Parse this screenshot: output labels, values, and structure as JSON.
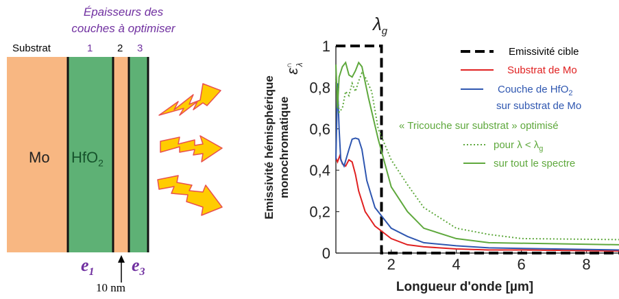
{
  "diagram": {
    "heading_line1": "Épaisseurs des",
    "heading_line2": "couches à optimiser",
    "substrate_label": "Substrat",
    "layer_numbers": [
      "1",
      "2",
      "3"
    ],
    "mo_label": "Mo",
    "hfo2_base": "HfO",
    "hfo2_sub": "2",
    "e1_letter": "e",
    "e1_sub": "1",
    "e3_letter": "e",
    "e3_sub": "3",
    "arrow_label": "10 nm",
    "colors": {
      "mo": "#f8b782",
      "hfo2": "#5eb175",
      "arrow_fill": "#ffcc00",
      "arrow_stroke": "#e85050",
      "purple_text": "#7030a0"
    }
  },
  "chart_data": {
    "type": "line",
    "ylabel_line1": "Emissivité hémisphérique",
    "ylabel_line2": "monochromatique",
    "ysymbol": "ε",
    "ysymbol_sup": "∩",
    "ysymbol_sub": "λ",
    "xlabel": "Longueur d'onde [µm]",
    "lambda_g_label": "λ",
    "lambda_g_sub": "g",
    "lambda_g": 1.7,
    "xlim": [
      0.3,
      9
    ],
    "ylim": [
      0,
      1
    ],
    "xticks": [
      "2",
      "4",
      "6",
      "8"
    ],
    "yticks": [
      "0",
      "0,2",
      "0,4",
      "0,6",
      "0,8",
      "1"
    ],
    "legend": [
      {
        "text": "Emissivité cible",
        "color": "#000000",
        "style": "dashed"
      },
      {
        "text": "Substrat de Mo",
        "color": "#e02020",
        "style": "solid"
      },
      {
        "text": "Couche de HfO",
        "sub": "2",
        "color": "#2e56b0",
        "style": "solid"
      },
      {
        "text": "sur substrat de Mo",
        "color": "#2e56b0",
        "style": "none"
      },
      {
        "text": "« Tricouche sur substrat » optimisé",
        "color": "#5ea83c",
        "style": "none"
      },
      {
        "text": "pour λ < λ",
        "sub": "g",
        "color": "#5ea83c",
        "style": "dotted"
      },
      {
        "text": "sur tout le spectre",
        "color": "#5ea83c",
        "style": "solid"
      }
    ],
    "series": [
      {
        "name": "Emissivité cible",
        "color": "#000000",
        "style": "dashed",
        "x": [
          0.3,
          1.7,
          1.7,
          9
        ],
        "y": [
          1,
          1,
          0,
          0
        ]
      },
      {
        "name": "Substrat de Mo",
        "color": "#e02020",
        "style": "solid",
        "x": [
          0.3,
          0.35,
          0.42,
          0.5,
          0.6,
          0.7,
          0.8,
          0.9,
          1.0,
          1.2,
          1.5,
          2.0,
          2.5,
          3.0,
          4.0,
          5.0,
          6.0,
          9.0
        ],
        "y": [
          0.46,
          0.44,
          0.47,
          0.43,
          0.42,
          0.45,
          0.44,
          0.38,
          0.3,
          0.2,
          0.13,
          0.07,
          0.04,
          0.03,
          0.02,
          0.015,
          0.015,
          0.01
        ]
      },
      {
        "name": "Couche de HfO2 sur substrat de Mo",
        "color": "#2e56b0",
        "style": "solid",
        "x": [
          0.3,
          0.35,
          0.4,
          0.45,
          0.55,
          0.7,
          0.8,
          0.9,
          1.0,
          1.1,
          1.25,
          1.5,
          2.0,
          2.5,
          3.0,
          4.0,
          5.0,
          9.0
        ],
        "y": [
          0.45,
          0.82,
          0.6,
          0.45,
          0.42,
          0.5,
          0.55,
          0.555,
          0.55,
          0.5,
          0.35,
          0.22,
          0.12,
          0.08,
          0.05,
          0.035,
          0.025,
          0.015
        ]
      },
      {
        "name": "pour λ < λg",
        "color": "#5ea83c",
        "style": "dotted",
        "x": [
          0.3,
          0.4,
          0.5,
          0.6,
          0.7,
          0.8,
          0.9,
          1.0,
          1.1,
          1.2,
          1.4,
          1.6,
          2.0,
          2.5,
          3.0,
          4.0,
          5.0,
          6.0,
          9.0
        ],
        "y": [
          0.85,
          0.68,
          0.7,
          0.78,
          0.76,
          0.82,
          0.78,
          0.83,
          0.87,
          0.85,
          0.78,
          0.6,
          0.45,
          0.33,
          0.22,
          0.12,
          0.09,
          0.07,
          0.065
        ]
      },
      {
        "name": "sur tout le spectre",
        "color": "#5ea83c",
        "style": "solid",
        "x": [
          0.3,
          0.35,
          0.4,
          0.5,
          0.6,
          0.7,
          0.8,
          0.9,
          1.0,
          1.1,
          1.3,
          1.6,
          2.0,
          2.5,
          3.0,
          4.0,
          5.0,
          9.0
        ],
        "y": [
          0.91,
          0.7,
          0.85,
          0.9,
          0.92,
          0.86,
          0.85,
          0.88,
          0.92,
          0.9,
          0.75,
          0.55,
          0.32,
          0.2,
          0.12,
          0.07,
          0.05,
          0.04
        ]
      }
    ]
  }
}
